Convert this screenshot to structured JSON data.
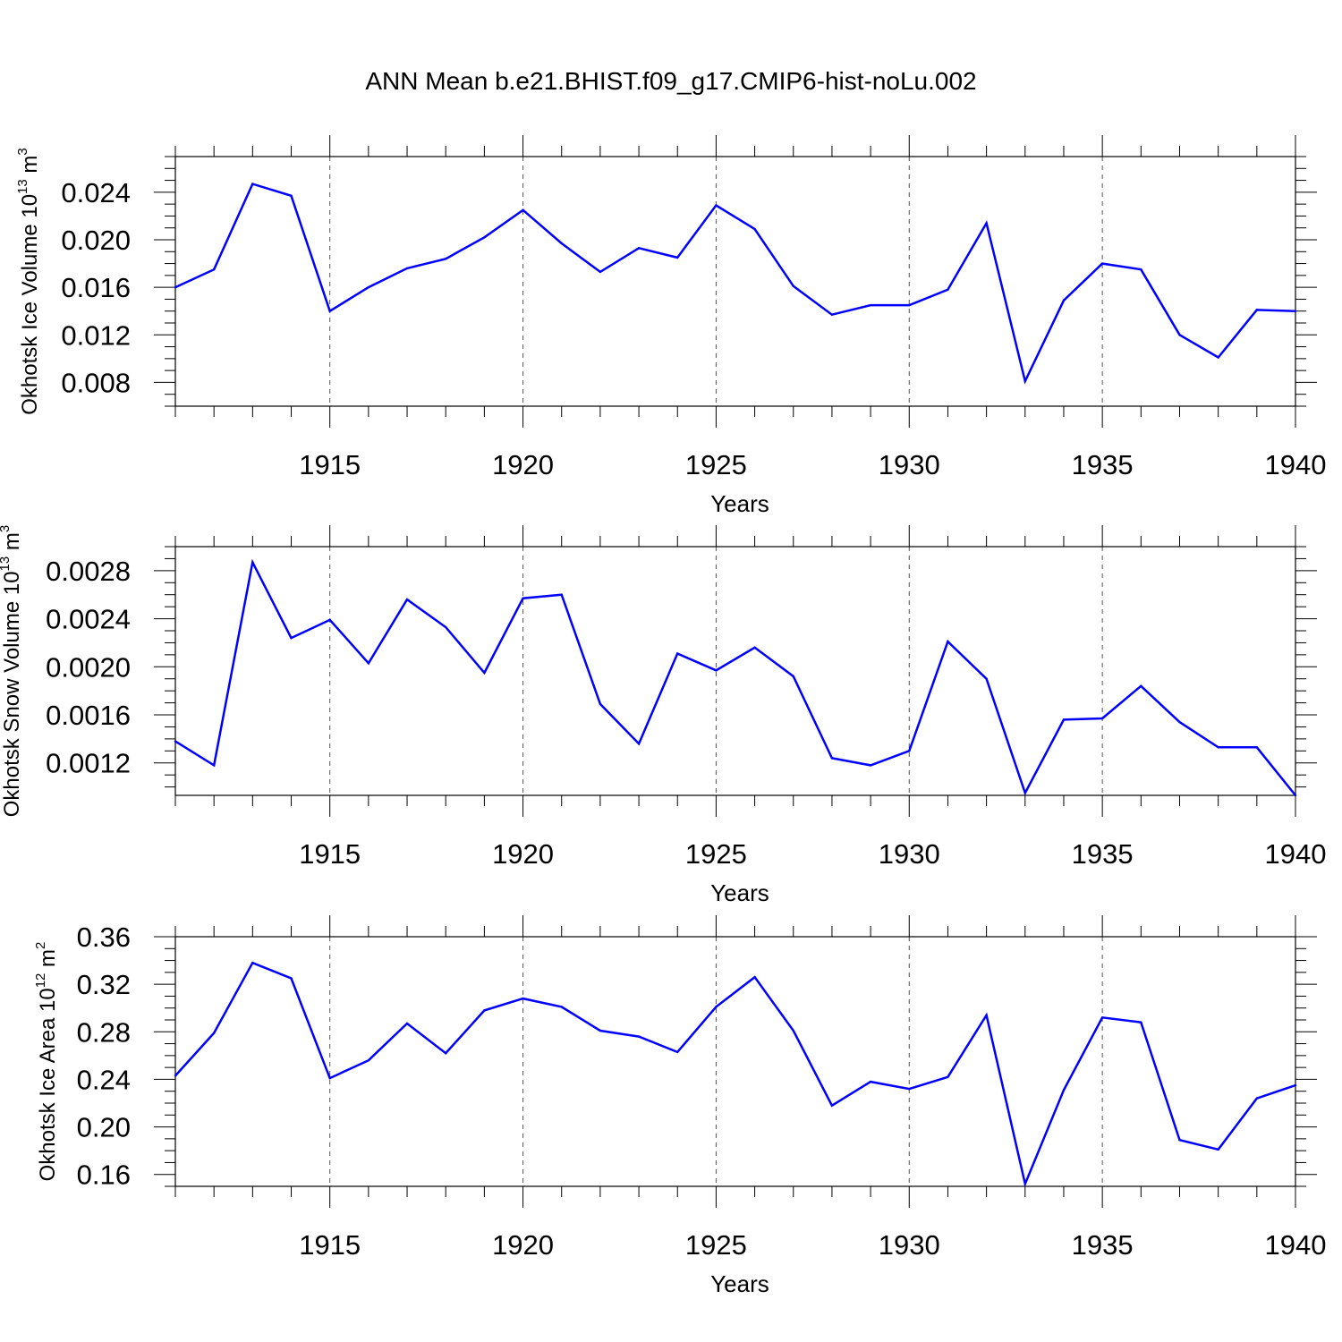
{
  "figure": {
    "title": "ANN Mean b.e21.BHIST.f09_g17.CMIP6-hist-noLu.002"
  },
  "chart_data": [
    {
      "type": "line",
      "ylabel": {
        "main": "Okhotsk Ice Volume 10",
        "sup": "13",
        "mid": " m",
        "sup2": "3"
      },
      "xlabel": "Years",
      "x": [
        1911,
        1912,
        1913,
        1914,
        1915,
        1916,
        1917,
        1918,
        1919,
        1920,
        1921,
        1922,
        1923,
        1924,
        1925,
        1926,
        1927,
        1928,
        1929,
        1930,
        1931,
        1932,
        1933,
        1934,
        1935,
        1936,
        1937,
        1938,
        1939,
        1940
      ],
      "values": [
        0.016,
        0.0175,
        0.0247,
        0.0237,
        0.014,
        0.016,
        0.0176,
        0.0184,
        0.0202,
        0.0225,
        0.0197,
        0.0173,
        0.0193,
        0.0185,
        0.0229,
        0.0209,
        0.0161,
        0.0137,
        0.0145,
        0.0145,
        0.0158,
        0.0214,
        0.0081,
        0.0149,
        0.018,
        0.0175,
        0.012,
        0.0101,
        0.0141,
        0.014
      ],
      "xlim": [
        1911,
        1940
      ],
      "ylim": [
        0.006,
        0.027
      ],
      "xticks": [
        1915,
        1920,
        1925,
        1930,
        1935,
        1940
      ],
      "xtick_labels": [
        "1915",
        "1920",
        "1925",
        "1930",
        "1935",
        "1940"
      ],
      "yticks": [
        0.008,
        0.012,
        0.016,
        0.02,
        0.024
      ],
      "ytick_labels": [
        "0.008",
        "0.012",
        "0.016",
        "0.020",
        "0.024"
      ],
      "minor_y": 0.001,
      "grid": "vertical-dashed",
      "color": "#0000ff"
    },
    {
      "type": "line",
      "ylabel": {
        "main": "Okhotsk Snow Volume 10",
        "sup": "13",
        "mid": " m",
        "sup2": "3"
      },
      "xlabel": "Years",
      "x": [
        1911,
        1912,
        1913,
        1914,
        1915,
        1916,
        1917,
        1918,
        1919,
        1920,
        1921,
        1922,
        1923,
        1924,
        1925,
        1926,
        1927,
        1928,
        1929,
        1930,
        1931,
        1932,
        1933,
        1934,
        1935,
        1936,
        1937,
        1938,
        1939,
        1940
      ],
      "values": [
        0.00138,
        0.00118,
        0.00287,
        0.00224,
        0.00239,
        0.00203,
        0.00256,
        0.00233,
        0.00195,
        0.00257,
        0.0026,
        0.00169,
        0.00136,
        0.00211,
        0.00197,
        0.00216,
        0.00192,
        0.00124,
        0.00118,
        0.0013,
        0.00221,
        0.0019,
        0.00095,
        0.00156,
        0.00157,
        0.00184,
        0.00154,
        0.00133,
        0.00133,
        0.00093
      ],
      "xlim": [
        1911,
        1940
      ],
      "ylim": [
        0.00093,
        0.003
      ],
      "xticks": [
        1915,
        1920,
        1925,
        1930,
        1935,
        1940
      ],
      "xtick_labels": [
        "1915",
        "1920",
        "1925",
        "1930",
        "1935",
        "1940"
      ],
      "yticks": [
        0.0012,
        0.0016,
        0.002,
        0.0024,
        0.0028
      ],
      "ytick_labels": [
        "0.0012",
        "0.0016",
        "0.0020",
        "0.0024",
        "0.0028"
      ],
      "minor_y": 0.0001,
      "grid": "vertical-dashed",
      "color": "#0000ff"
    },
    {
      "type": "line",
      "ylabel": {
        "main": "Okhotsk Ice Area 10",
        "sup": "12",
        "mid": " m",
        "sup2": "2"
      },
      "xlabel": "Years",
      "x": [
        1911,
        1912,
        1913,
        1914,
        1915,
        1916,
        1917,
        1918,
        1919,
        1920,
        1921,
        1922,
        1923,
        1924,
        1925,
        1926,
        1927,
        1928,
        1929,
        1930,
        1931,
        1932,
        1933,
        1934,
        1935,
        1936,
        1937,
        1938,
        1939,
        1940
      ],
      "values": [
        0.243,
        0.279,
        0.338,
        0.325,
        0.241,
        0.256,
        0.287,
        0.262,
        0.298,
        0.308,
        0.301,
        0.281,
        0.276,
        0.263,
        0.301,
        0.326,
        0.281,
        0.218,
        0.238,
        0.232,
        0.242,
        0.294,
        0.152,
        0.231,
        0.292,
        0.288,
        0.189,
        0.181,
        0.224,
        0.235
      ],
      "xlim": [
        1911,
        1940
      ],
      "ylim": [
        0.15,
        0.36
      ],
      "xticks": [
        1915,
        1920,
        1925,
        1930,
        1935,
        1940
      ],
      "xtick_labels": [
        "1915",
        "1920",
        "1925",
        "1930",
        "1935",
        "1940"
      ],
      "yticks": [
        0.16,
        0.2,
        0.24,
        0.28,
        0.32,
        0.36
      ],
      "ytick_labels": [
        "0.16",
        "0.20",
        "0.24",
        "0.28",
        "0.32",
        "0.36"
      ],
      "minor_y": 0.01,
      "grid": "vertical-dashed",
      "color": "#0000ff"
    }
  ]
}
